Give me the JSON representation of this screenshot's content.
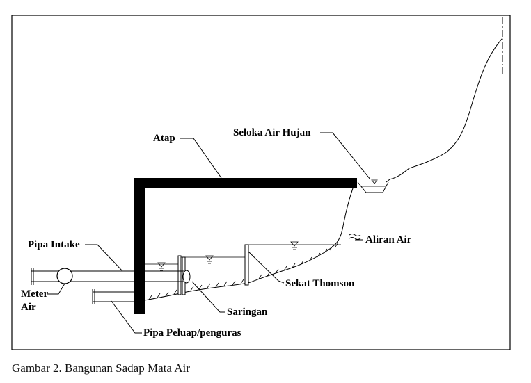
{
  "labels": {
    "atap": "Atap",
    "seloka": "Seloka Air Hujan",
    "aliran": "Aliran Air",
    "pipa_intake": "Pipa Intake",
    "meter_line1": "Meter",
    "meter_line2": "Air",
    "sekat": "Sekat Thomson",
    "saringan": "Saringan",
    "pipa_peluap": "Pipa Peluap/penguras"
  },
  "caption": "Gambar 2. Bangunan Sadap Mata Air"
}
